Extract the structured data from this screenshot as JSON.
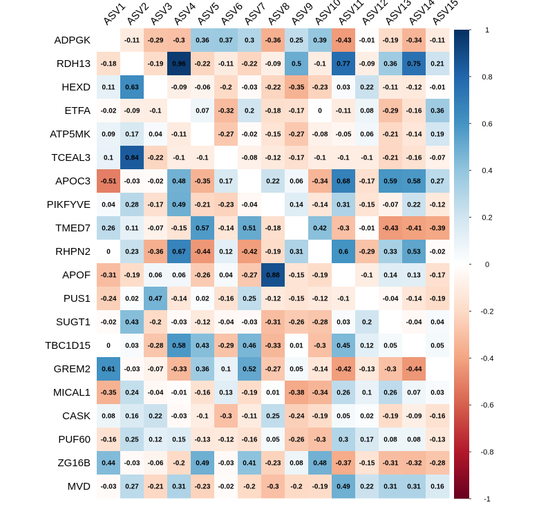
{
  "chart_data": {
    "type": "heatmap",
    "title": "",
    "columns": [
      "ASV1",
      "ASV2",
      "ASV3",
      "ASV4",
      "ASV5",
      "ASV6",
      "ASV7",
      "ASV8",
      "ASV9",
      "ASV10",
      "ASV11",
      "ASV12",
      "ASV13",
      "ASV14",
      "ASV15"
    ],
    "rows": [
      "ADPGK",
      "RDH13",
      "HEXD",
      "ETFA",
      "ATP5MK",
      "TCEAL3",
      "APOC3",
      "PIKFYVE",
      "TMED7",
      "RHPN2",
      "APOF",
      "PUS1",
      "SUGT1",
      "TBC1D15",
      "GREM2",
      "MICAL1",
      "CASK",
      "PUF60",
      "ZG16B",
      "MVD"
    ],
    "values": [
      [
        null,
        -0.11,
        -0.29,
        -0.3,
        0.36,
        0.37,
        0.3,
        -0.36,
        0.25,
        0.39,
        -0.43,
        -0.01,
        -0.19,
        -0.34,
        -0.11
      ],
      [
        -0.18,
        null,
        -0.19,
        0.96,
        -0.22,
        -0.11,
        -0.22,
        -0.09,
        0.5,
        -0.1,
        0.77,
        -0.09,
        0.36,
        0.75,
        0.21
      ],
      [
        0.11,
        0.63,
        null,
        -0.09,
        -0.06,
        -0.2,
        -0.03,
        -0.22,
        -0.35,
        -0.23,
        0.03,
        0.22,
        -0.11,
        -0.12,
        -0.01
      ],
      [
        -0.02,
        -0.09,
        -0.1,
        null,
        0.07,
        -0.32,
        0.2,
        -0.18,
        -0.17,
        0,
        -0.11,
        0.08,
        -0.29,
        -0.16,
        0.36
      ],
      [
        0.09,
        0.17,
        0.04,
        -0.11,
        null,
        -0.27,
        -0.02,
        -0.15,
        -0.27,
        -0.08,
        -0.05,
        0.06,
        -0.21,
        -0.14,
        0.19
      ],
      [
        0.1,
        0.84,
        -0.22,
        -0.1,
        -0.1,
        null,
        -0.08,
        -0.12,
        -0.17,
        -0.1,
        -0.1,
        -0.1,
        -0.21,
        -0.16,
        -0.07
      ],
      [
        -0.51,
        -0.03,
        -0.02,
        0.48,
        -0.35,
        0.17,
        null,
        0.22,
        0.06,
        -0.34,
        0.68,
        -0.17,
        0.59,
        0.58,
        0.27
      ],
      [
        0.04,
        0.28,
        -0.17,
        0.49,
        -0.21,
        -0.23,
        -0.04,
        null,
        0.14,
        -0.14,
        0.31,
        -0.15,
        -0.07,
        0.22,
        -0.12
      ],
      [
        0.26,
        0.11,
        -0.07,
        -0.15,
        0.57,
        -0.14,
        0.51,
        -0.18,
        null,
        0.42,
        -0.3,
        -0.01,
        -0.43,
        -0.41,
        -0.39
      ],
      [
        0,
        0.23,
        -0.36,
        0.67,
        -0.44,
        0.12,
        -0.42,
        -0.19,
        0.31,
        null,
        0.6,
        -0.29,
        0.33,
        0.53,
        -0.02
      ],
      [
        -0.31,
        -0.19,
        0.06,
        0.06,
        -0.26,
        0.04,
        -0.27,
        0.88,
        -0.15,
        -0.19,
        null,
        -0.1,
        0.14,
        0.13,
        -0.17
      ],
      [
        -0.24,
        0.02,
        0.47,
        -0.14,
        0.02,
        -0.16,
        0.25,
        -0.12,
        -0.15,
        -0.12,
        -0.1,
        null,
        -0.04,
        -0.14,
        -0.19
      ],
      [
        -0.02,
        0.43,
        -0.2,
        -0.03,
        -0.12,
        -0.04,
        -0.03,
        -0.31,
        -0.26,
        -0.28,
        0.03,
        0.2,
        null,
        -0.04,
        0.04
      ],
      [
        0,
        0.03,
        -0.28,
        0.58,
        0.43,
        -0.29,
        0.46,
        -0.33,
        0.01,
        -0.3,
        0.45,
        0.12,
        0.05,
        null,
        0.05
      ],
      [
        0.61,
        -0.03,
        -0.07,
        -0.33,
        0.36,
        0.1,
        0.52,
        -0.27,
        0.05,
        -0.14,
        -0.42,
        -0.13,
        -0.3,
        -0.44,
        null
      ],
      [
        -0.35,
        0.24,
        -0.04,
        -0.01,
        -0.16,
        0.13,
        -0.19,
        0.01,
        -0.38,
        -0.34,
        0.26,
        0.1,
        0.26,
        0.07,
        0.03
      ],
      [
        0.08,
        0.16,
        0.22,
        -0.03,
        -0.1,
        -0.3,
        -0.11,
        0.25,
        -0.24,
        -0.19,
        0.05,
        0.02,
        -0.19,
        -0.09,
        -0.16
      ],
      [
        -0.16,
        0.25,
        0.12,
        0.15,
        -0.13,
        -0.12,
        -0.16,
        0.05,
        -0.26,
        -0.3,
        0.3,
        0.17,
        0.08,
        0.08,
        -0.13
      ],
      [
        0.44,
        -0.03,
        -0.06,
        -0.2,
        0.49,
        -0.03,
        0.41,
        -0.23,
        0.08,
        0.48,
        -0.37,
        -0.15,
        -0.31,
        -0.32,
        -0.28
      ],
      [
        -0.03,
        0.27,
        -0.21,
        0.31,
        -0.23,
        -0.02,
        -0.2,
        -0.3,
        -0.2,
        -0.19,
        0.49,
        0.22,
        0.31,
        0.31,
        0.16
      ]
    ],
    "colorbar": {
      "range": [
        -1,
        1
      ],
      "ticks": [
        1,
        0.8,
        0.6,
        0.4,
        0.2,
        0,
        -0.2,
        -0.4,
        -0.6,
        -0.8,
        -1
      ],
      "tick_labels": [
        "1",
        "0.8",
        "0.6",
        "0.4",
        "0.2",
        "0",
        "-0.2",
        "-0.4",
        "-0.6",
        "-0.8",
        "-1"
      ],
      "palette": [
        "#67001F",
        "#B2182B",
        "#D6604D",
        "#F4A582",
        "#FDDBC7",
        "#FFFFFF",
        "#D1E5F0",
        "#92C5DE",
        "#4393C3",
        "#2166AC",
        "#053061"
      ]
    },
    "legend_position": "right"
  }
}
